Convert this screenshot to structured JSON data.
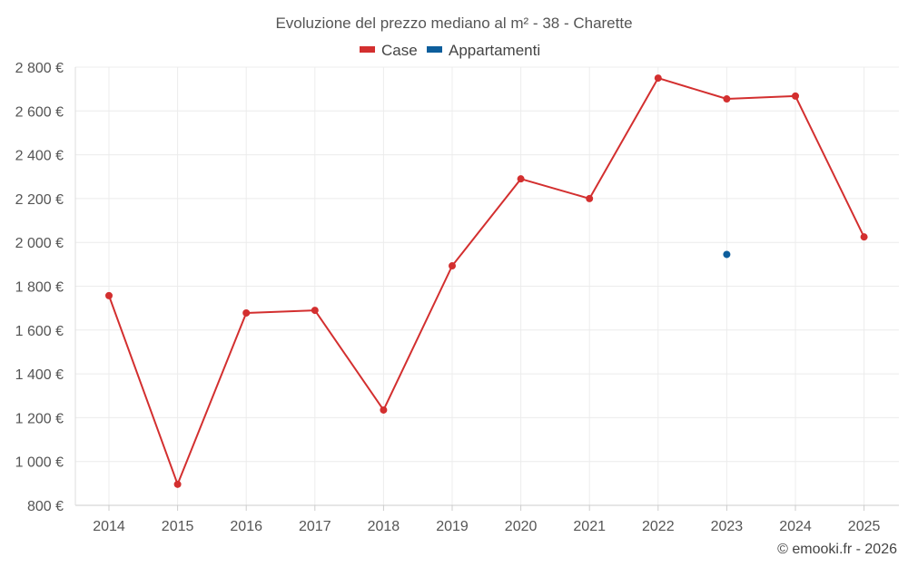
{
  "chart_data": {
    "type": "line",
    "title": "Evoluzione del prezzo mediano al m² - 38 - Charette",
    "categories": [
      "2014",
      "2015",
      "2016",
      "2017",
      "2018",
      "2019",
      "2020",
      "2021",
      "2022",
      "2023",
      "2024",
      "2025"
    ],
    "series": [
      {
        "name": "Case",
        "color": "#d32f2f",
        "values": [
          1757,
          896,
          1678,
          1690,
          1235,
          1893,
          2290,
          2200,
          2750,
          2655,
          2668,
          2025
        ]
      },
      {
        "name": "Appartamenti",
        "color": "#0d5e9c",
        "values": [
          null,
          null,
          null,
          null,
          null,
          null,
          null,
          null,
          null,
          1945,
          null,
          null
        ]
      }
    ],
    "ylim": [
      800,
      2800
    ],
    "yticks": [
      800,
      1000,
      1200,
      1400,
      1600,
      1800,
      2000,
      2200,
      2400,
      2600,
      2800
    ],
    "ytick_labels": [
      "800 €",
      "1 000 €",
      "1 200 €",
      "1 400 €",
      "1 600 €",
      "1 800 €",
      "2 000 €",
      "2 200 €",
      "2 400 €",
      "2 600 €",
      "2 800 €"
    ],
    "xlabel": "",
    "ylabel": "",
    "grid": true,
    "legend_position": "top-center"
  },
  "footer": "© emooki.fr - 2026"
}
